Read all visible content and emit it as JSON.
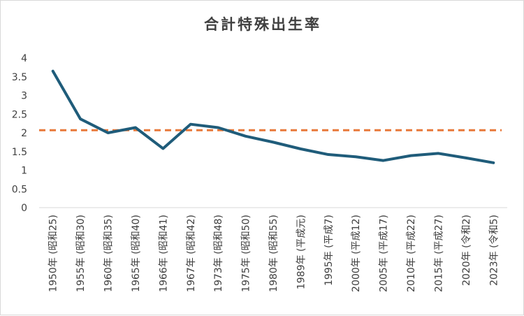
{
  "chart_data": {
    "type": "line",
    "title": "合計特殊出生率",
    "xlabel": "",
    "ylabel": "",
    "ylim": [
      0,
      4
    ],
    "yticks": [
      "0",
      "0.5",
      "1",
      "1.5",
      "2",
      "2.5",
      "3",
      "3.5",
      "4"
    ],
    "grid": false,
    "legend": "none",
    "categories": [
      "1950年 (昭和25)",
      "1955年 (昭和30)",
      "1960年 (昭和35)",
      "1965年 (昭和40)",
      "1966年 (昭和41)",
      "1967年 (昭和42)",
      "1973年 (昭和48)",
      "1975年 (昭和50)",
      "1980年 (昭和55)",
      "1989年 (平成元)",
      "1995年 (平成7)",
      "2000年 (平成12)",
      "2005年 (平成17)",
      "2010年 (平成22)",
      "2015年 (平成27)",
      "2020年 (令和2)",
      "2023年 (令和5)"
    ],
    "series": [
      {
        "values": [
          3.65,
          2.37,
          2.0,
          2.14,
          1.58,
          2.23,
          2.14,
          1.91,
          1.75,
          1.57,
          1.42,
          1.36,
          1.26,
          1.39,
          1.45,
          1.33,
          1.2
        ],
        "color": "#1f5c7a",
        "style": "solid"
      }
    ],
    "reference_line": {
      "value": 2.07,
      "color": "#e8793a",
      "style": "dashed"
    }
  }
}
